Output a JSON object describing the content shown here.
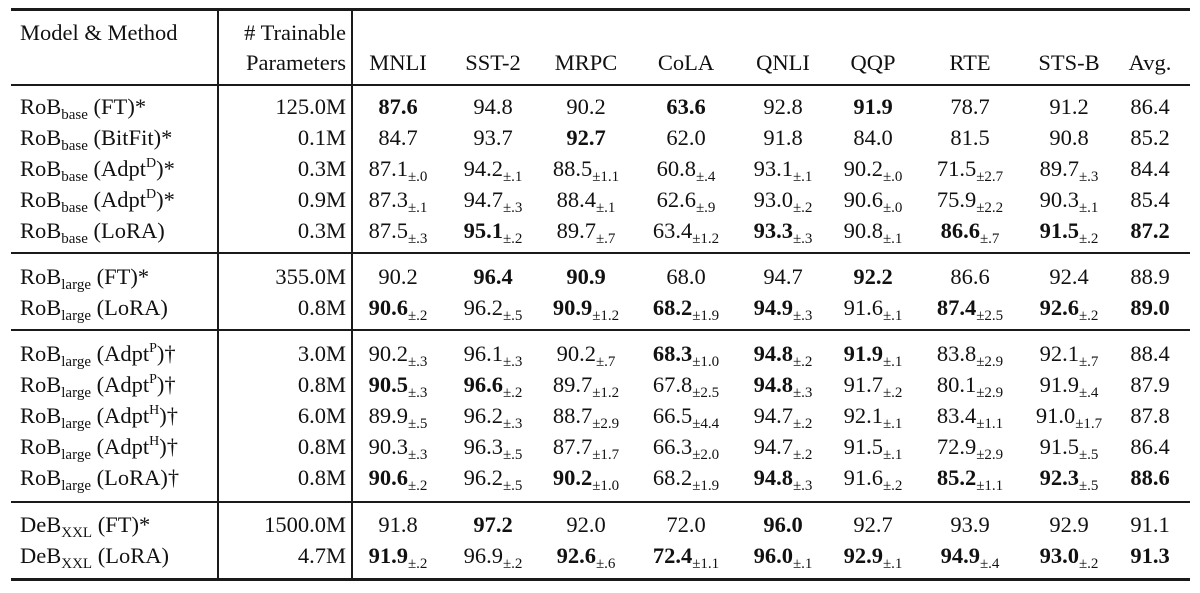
{
  "header": {
    "col_model": "Model & Method",
    "col_params_line1": "# Trainable",
    "col_params_line2": "Parameters",
    "tasks": [
      "MNLI",
      "SST-2",
      "MRPC",
      "CoLA",
      "QNLI",
      "QQP",
      "RTE",
      "STS-B",
      "Avg."
    ]
  },
  "groups": [
    {
      "rows": [
        {
          "base": "RoB",
          "sub": "base",
          "sup": "",
          "method": "FT",
          "mark": "*",
          "params": "125.0M",
          "values": [
            [
              "87.6",
              "",
              true
            ],
            [
              "94.8",
              "",
              false
            ],
            [
              "90.2",
              "",
              false
            ],
            [
              "63.6",
              "",
              true
            ],
            [
              "92.8",
              "",
              false
            ],
            [
              "91.9",
              "",
              true
            ],
            [
              "78.7",
              "",
              false
            ],
            [
              "91.2",
              "",
              false
            ],
            [
              "86.4",
              "",
              false
            ]
          ]
        },
        {
          "base": "RoB",
          "sub": "base",
          "sup": "",
          "method": "BitFit",
          "mark": "*",
          "params": "0.1M",
          "values": [
            [
              "84.7",
              "",
              false
            ],
            [
              "93.7",
              "",
              false
            ],
            [
              "92.7",
              "",
              true
            ],
            [
              "62.0",
              "",
              false
            ],
            [
              "91.8",
              "",
              false
            ],
            [
              "84.0",
              "",
              false
            ],
            [
              "81.5",
              "",
              false
            ],
            [
              "90.8",
              "",
              false
            ],
            [
              "85.2",
              "",
              false
            ]
          ]
        },
        {
          "base": "RoB",
          "sub": "base",
          "sup": "D",
          "method": "Adpt",
          "mark": "*",
          "params": "0.3M",
          "values": [
            [
              "87.1",
              "±.0",
              false
            ],
            [
              "94.2",
              "±.1",
              false
            ],
            [
              "88.5",
              "±1.1",
              false
            ],
            [
              "60.8",
              "±.4",
              false
            ],
            [
              "93.1",
              "±.1",
              false
            ],
            [
              "90.2",
              "±.0",
              false
            ],
            [
              "71.5",
              "±2.7",
              false
            ],
            [
              "89.7",
              "±.3",
              false
            ],
            [
              "84.4",
              "",
              false
            ]
          ]
        },
        {
          "base": "RoB",
          "sub": "base",
          "sup": "D",
          "method": "Adpt",
          "mark": "*",
          "params": "0.9M",
          "values": [
            [
              "87.3",
              "±.1",
              false
            ],
            [
              "94.7",
              "±.3",
              false
            ],
            [
              "88.4",
              "±.1",
              false
            ],
            [
              "62.6",
              "±.9",
              false
            ],
            [
              "93.0",
              "±.2",
              false
            ],
            [
              "90.6",
              "±.0",
              false
            ],
            [
              "75.9",
              "±2.2",
              false
            ],
            [
              "90.3",
              "±.1",
              false
            ],
            [
              "85.4",
              "",
              false
            ]
          ]
        },
        {
          "base": "RoB",
          "sub": "base",
          "sup": "",
          "method": "LoRA",
          "mark": "",
          "params": "0.3M",
          "values": [
            [
              "87.5",
              "±.3",
              false
            ],
            [
              "95.1",
              "±.2",
              true
            ],
            [
              "89.7",
              "±.7",
              false
            ],
            [
              "63.4",
              "±1.2",
              false
            ],
            [
              "93.3",
              "±.3",
              true
            ],
            [
              "90.8",
              "±.1",
              false
            ],
            [
              "86.6",
              "±.7",
              true
            ],
            [
              "91.5",
              "±.2",
              true
            ],
            [
              "87.2",
              "",
              true
            ]
          ]
        }
      ]
    },
    {
      "rows": [
        {
          "base": "RoB",
          "sub": "large",
          "sup": "",
          "method": "FT",
          "mark": "*",
          "params": "355.0M",
          "values": [
            [
              "90.2",
              "",
              false
            ],
            [
              "96.4",
              "",
              true
            ],
            [
              "90.9",
              "",
              true
            ],
            [
              "68.0",
              "",
              false
            ],
            [
              "94.7",
              "",
              false
            ],
            [
              "92.2",
              "",
              true
            ],
            [
              "86.6",
              "",
              false
            ],
            [
              "92.4",
              "",
              false
            ],
            [
              "88.9",
              "",
              false
            ]
          ]
        },
        {
          "base": "RoB",
          "sub": "large",
          "sup": "",
          "method": "LoRA",
          "mark": "",
          "params": "0.8M",
          "values": [
            [
              "90.6",
              "±.2",
              true
            ],
            [
              "96.2",
              "±.5",
              false
            ],
            [
              "90.9",
              "±1.2",
              true
            ],
            [
              "68.2",
              "±1.9",
              true
            ],
            [
              "94.9",
              "±.3",
              true
            ],
            [
              "91.6",
              "±.1",
              false
            ],
            [
              "87.4",
              "±2.5",
              true
            ],
            [
              "92.6",
              "±.2",
              true
            ],
            [
              "89.0",
              "",
              true
            ]
          ]
        }
      ]
    },
    {
      "rows": [
        {
          "base": "RoB",
          "sub": "large",
          "sup": "P",
          "method": "Adpt",
          "mark": "†",
          "params": "3.0M",
          "values": [
            [
              "90.2",
              "±.3",
              false
            ],
            [
              "96.1",
              "±.3",
              false
            ],
            [
              "90.2",
              "±.7",
              false
            ],
            [
              "68.3",
              "±1.0",
              true
            ],
            [
              "94.8",
              "±.2",
              true
            ],
            [
              "91.9",
              "±.1",
              true
            ],
            [
              "83.8",
              "±2.9",
              false
            ],
            [
              "92.1",
              "±.7",
              false
            ],
            [
              "88.4",
              "",
              false
            ]
          ]
        },
        {
          "base": "RoB",
          "sub": "large",
          "sup": "P",
          "method": "Adpt",
          "mark": "†",
          "params": "0.8M",
          "values": [
            [
              "90.5",
              "±.3",
              true
            ],
            [
              "96.6",
              "±.2",
              true
            ],
            [
              "89.7",
              "±1.2",
              false
            ],
            [
              "67.8",
              "±2.5",
              false
            ],
            [
              "94.8",
              "±.3",
              true
            ],
            [
              "91.7",
              "±.2",
              false
            ],
            [
              "80.1",
              "±2.9",
              false
            ],
            [
              "91.9",
              "±.4",
              false
            ],
            [
              "87.9",
              "",
              false
            ]
          ]
        },
        {
          "base": "RoB",
          "sub": "large",
          "sup": "H",
          "method": "Adpt",
          "mark": "†",
          "params": "6.0M",
          "values": [
            [
              "89.9",
              "±.5",
              false
            ],
            [
              "96.2",
              "±.3",
              false
            ],
            [
              "88.7",
              "±2.9",
              false
            ],
            [
              "66.5",
              "±4.4",
              false
            ],
            [
              "94.7",
              "±.2",
              false
            ],
            [
              "92.1",
              "±.1",
              false
            ],
            [
              "83.4",
              "±1.1",
              false
            ],
            [
              "91.0",
              "±1.7",
              false
            ],
            [
              "87.8",
              "",
              false
            ]
          ]
        },
        {
          "base": "RoB",
          "sub": "large",
          "sup": "H",
          "method": "Adpt",
          "mark": "†",
          "params": "0.8M",
          "values": [
            [
              "90.3",
              "±.3",
              false
            ],
            [
              "96.3",
              "±.5",
              false
            ],
            [
              "87.7",
              "±1.7",
              false
            ],
            [
              "66.3",
              "±2.0",
              false
            ],
            [
              "94.7",
              "±.2",
              false
            ],
            [
              "91.5",
              "±.1",
              false
            ],
            [
              "72.9",
              "±2.9",
              false
            ],
            [
              "91.5",
              "±.5",
              false
            ],
            [
              "86.4",
              "",
              false
            ]
          ]
        },
        {
          "base": "RoB",
          "sub": "large",
          "sup": "",
          "method": "LoRA",
          "mark": "†",
          "params": "0.8M",
          "values": [
            [
              "90.6",
              "±.2",
              true
            ],
            [
              "96.2",
              "±.5",
              false
            ],
            [
              "90.2",
              "±1.0",
              true
            ],
            [
              "68.2",
              "±1.9",
              false
            ],
            [
              "94.8",
              "±.3",
              true
            ],
            [
              "91.6",
              "±.2",
              false
            ],
            [
              "85.2",
              "±1.1",
              true
            ],
            [
              "92.3",
              "±.5",
              true
            ],
            [
              "88.6",
              "",
              true
            ]
          ]
        }
      ]
    },
    {
      "rows": [
        {
          "base": "DeB",
          "sub": "XXL",
          "sup": "",
          "method": "FT",
          "mark": "*",
          "params": "1500.0M",
          "values": [
            [
              "91.8",
              "",
              false
            ],
            [
              "97.2",
              "",
              true
            ],
            [
              "92.0",
              "",
              false
            ],
            [
              "72.0",
              "",
              false
            ],
            [
              "96.0",
              "",
              true
            ],
            [
              "92.7",
              "",
              false
            ],
            [
              "93.9",
              "",
              false
            ],
            [
              "92.9",
              "",
              false
            ],
            [
              "91.1",
              "",
              false
            ]
          ]
        },
        {
          "base": "DeB",
          "sub": "XXL",
          "sup": "",
          "method": "LoRA",
          "mark": "",
          "params": "4.7M",
          "values": [
            [
              "91.9",
              "±.2",
              true
            ],
            [
              "96.9",
              "±.2",
              false
            ],
            [
              "92.6",
              "±.6",
              true
            ],
            [
              "72.4",
              "±1.1",
              true
            ],
            [
              "96.0",
              "±.1",
              true
            ],
            [
              "92.9",
              "±.1",
              true
            ],
            [
              "94.9",
              "±.4",
              true
            ],
            [
              "93.0",
              "±.2",
              true
            ],
            [
              "91.3",
              "",
              true
            ]
          ]
        }
      ]
    }
  ]
}
